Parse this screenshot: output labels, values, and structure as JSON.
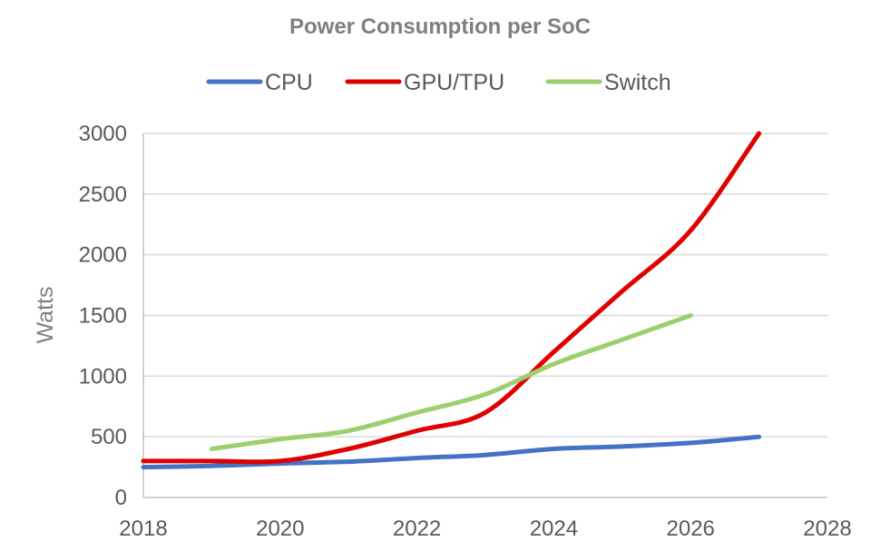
{
  "chart_data": {
    "type": "line",
    "title": "Power Consumption per SoC",
    "xlabel": "",
    "ylabel": "Watts",
    "xlim": [
      2018,
      2028
    ],
    "ylim": [
      0,
      3000
    ],
    "xticks": [
      2018,
      2020,
      2022,
      2024,
      2026,
      2028
    ],
    "yticks": [
      0,
      500,
      1000,
      1500,
      2000,
      2500,
      3000
    ],
    "grid": true,
    "legend": "top",
    "series": [
      {
        "name": "CPU",
        "color": "#4472c4",
        "x": [
          2018,
          2019,
          2020,
          2021,
          2022,
          2023,
          2024,
          2025,
          2026,
          2027
        ],
        "y": [
          250,
          260,
          280,
          295,
          325,
          350,
          400,
          420,
          450,
          500
        ]
      },
      {
        "name": "GPU/TPU",
        "color": "#e00000",
        "x": [
          2018,
          2019,
          2020,
          2021,
          2022,
          2023,
          2024,
          2025,
          2026,
          2027
        ],
        "y": [
          300,
          300,
          300,
          400,
          550,
          700,
          1200,
          1700,
          2200,
          3000
        ]
      },
      {
        "name": "Switch",
        "color": "#9ccf6e",
        "x": [
          2019,
          2020,
          2021,
          2022,
          2023,
          2024,
          2025,
          2026
        ],
        "y": [
          400,
          480,
          550,
          700,
          850,
          1100,
          1300,
          1500
        ]
      }
    ]
  }
}
